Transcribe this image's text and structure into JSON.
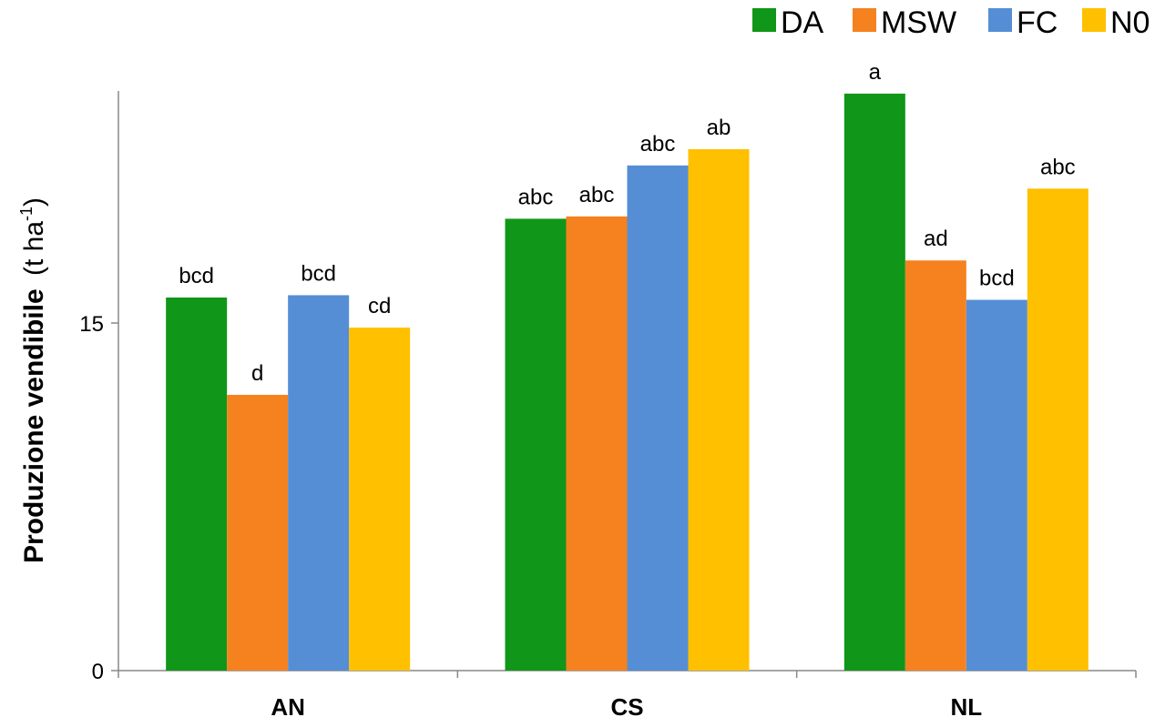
{
  "chart_data": {
    "type": "bar",
    "categories": [
      "AN",
      "CS",
      "NL"
    ],
    "series": [
      {
        "name": "DA",
        "color": "#109618",
        "values": [
          16.1,
          19.5,
          24.9
        ],
        "labels": [
          "bcd",
          "abc",
          "a"
        ]
      },
      {
        "name": "MSW",
        "color": "#F5821F",
        "values": [
          11.9,
          19.6,
          17.7
        ],
        "labels": [
          "d",
          "abc",
          "ad"
        ]
      },
      {
        "name": "FC",
        "color": "#558ED5",
        "values": [
          16.2,
          21.8,
          16.0
        ],
        "labels": [
          "bcd",
          "abc",
          "bcd"
        ]
      },
      {
        "name": "N0",
        "color": "#FFC000",
        "values": [
          14.8,
          22.5,
          20.8
        ],
        "labels": [
          "cd",
          "ab",
          "abc"
        ]
      }
    ],
    "ylabel_main": "Produzione vendibile",
    "ylabel_unit_open": "(t ha",
    "ylabel_unit_exp": "-1",
    "ylabel_unit_close": ")",
    "yticks": [
      "0",
      "15"
    ],
    "ylim": [
      0,
      28
    ],
    "legend_position": "top-right",
    "grid": false
  }
}
